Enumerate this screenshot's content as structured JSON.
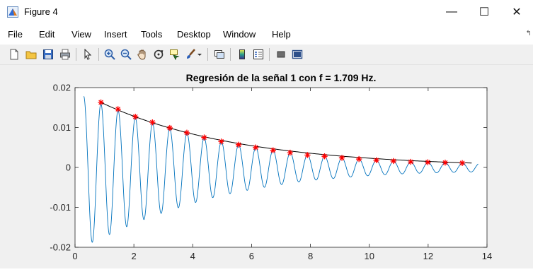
{
  "window": {
    "title": "Figure 4",
    "controls": {
      "minimize": "—",
      "maximize": "☐",
      "close": "✕"
    }
  },
  "menu": [
    {
      "label": "File"
    },
    {
      "label": "Edit"
    },
    {
      "label": "View"
    },
    {
      "label": "Insert"
    },
    {
      "label": "Tools"
    },
    {
      "label": "Desktop"
    },
    {
      "label": "Window"
    },
    {
      "label": "Help"
    }
  ],
  "toolbar": {
    "icons": [
      "new-figure-icon",
      "open-file-icon",
      "save-icon",
      "print-icon",
      "pointer-icon",
      "zoom-in-icon",
      "zoom-out-icon",
      "pan-icon",
      "rotate-3d-icon",
      "data-cursor-icon",
      "brush-icon",
      "brush-dropdown-icon",
      "link-plot-icon",
      "insert-colorbar-icon",
      "insert-legend-icon",
      "hide-plot-tools-icon",
      "show-plot-tools-icon"
    ]
  },
  "colors": {
    "signal": "#0072BD",
    "envelope": "#000000",
    "markers": "#FF0000",
    "figure_bg": "#F0F0F0"
  },
  "chart_data": {
    "type": "line",
    "title": "Regresión de la señal 1 con f = 1.709 Hz.",
    "xlabel": "",
    "ylabel": "",
    "xlim": [
      0,
      14
    ],
    "ylim": [
      -0.02,
      0.02
    ],
    "xticks": [
      "0",
      "2",
      "4",
      "6",
      "8",
      "10",
      "12",
      "14"
    ],
    "yticks": [
      "0.02",
      "0.01",
      "0",
      "-0.01",
      "-0.02"
    ],
    "grid": false,
    "series": [
      {
        "style": "damped oscillation (blue line)",
        "frequency_hz": 1.709,
        "x_start": 0.3,
        "x_end": 13.7,
        "first_value": 0.018,
        "first_trough": -0.0165
      },
      {
        "style": "exponential envelope fit (black line)",
        "x": [
          0.88,
          13.48
        ],
        "y": [
          0.0163,
          0.0011
        ]
      },
      {
        "style": "peak markers (red asterisks)",
        "x": [
          0.88,
          1.46,
          2.05,
          2.63,
          3.22,
          3.8,
          4.39,
          4.97,
          5.56,
          6.14,
          6.73,
          7.31,
          7.9,
          8.48,
          9.07,
          9.65,
          10.24,
          10.82,
          11.41,
          11.99,
          12.58,
          13.16
        ],
        "y": [
          0.0163,
          0.0146,
          0.0127,
          0.0113,
          0.0099,
          0.0087,
          0.0075,
          0.0065,
          0.0057,
          0.005,
          0.0043,
          0.0037,
          0.0031,
          0.0028,
          0.0024,
          0.0021,
          0.0018,
          0.0016,
          0.0014,
          0.0013,
          0.0012,
          0.0011
        ]
      }
    ]
  }
}
